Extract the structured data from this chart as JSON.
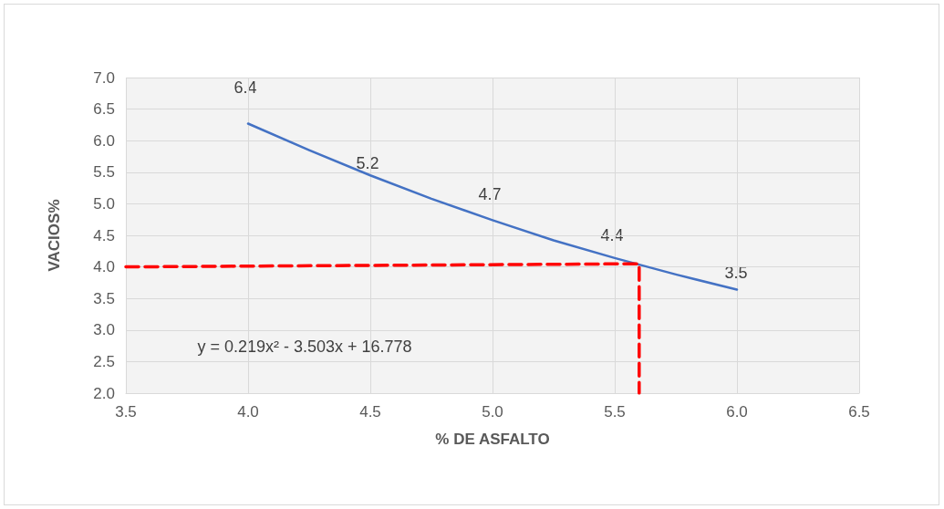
{
  "chart_data": {
    "type": "line",
    "xlabel": "% DE ASFALTO",
    "ylabel": "VACIOS%",
    "annotations": [
      "y = 0.219x² - 3.503x + 16.778",
      "6.4",
      "5.2",
      "4.7",
      "4.4",
      "3.5"
    ],
    "series": [
      {
        "color": "#4472c4",
        "x": [
          4,
          4.25,
          4.5,
          4.75,
          5,
          5.25,
          5.5,
          5.75,
          6
        ],
        "values": [
          6.27,
          5.85,
          5.45,
          5.08,
          4.74,
          4.42,
          4.14,
          3.88,
          3.64
        ]
      },
      {
        "color": "#ff0000",
        "line_style": "dashed",
        "x": [
          3.5,
          5.6,
          5.6
        ],
        "values": [
          4,
          4.05,
          2
        ]
      }
    ],
    "xlim": [
      3.5,
      6.5
    ],
    "xticks": [
      {
        "value": 3.5,
        "label": "3.5"
      },
      {
        "value": 4,
        "label": "4.0"
      },
      {
        "value": 4.5,
        "label": "4.5"
      },
      {
        "value": 5,
        "label": "5.0"
      },
      {
        "value": 5.5,
        "label": "5.5"
      },
      {
        "value": 6,
        "label": "6.0"
      },
      {
        "value": 6.5,
        "label": "6.5"
      }
    ],
    "ylim": [
      2,
      7
    ],
    "yticks": [
      {
        "value": 2,
        "label": "2.0"
      },
      {
        "value": 2.5,
        "label": "2.5"
      },
      {
        "value": 3,
        "label": "3.0"
      },
      {
        "value": 3.5,
        "label": "3.5"
      },
      {
        "value": 4,
        "label": "4.0"
      },
      {
        "value": 4.5,
        "label": "4.5"
      },
      {
        "value": 5,
        "label": "5.0"
      },
      {
        "value": 5.5,
        "label": "5.5"
      },
      {
        "value": 6,
        "label": "6.0"
      },
      {
        "value": 6.5,
        "label": "6.5"
      },
      {
        "value": 7,
        "label": "7.0"
      }
    ],
    "grid": true
  }
}
